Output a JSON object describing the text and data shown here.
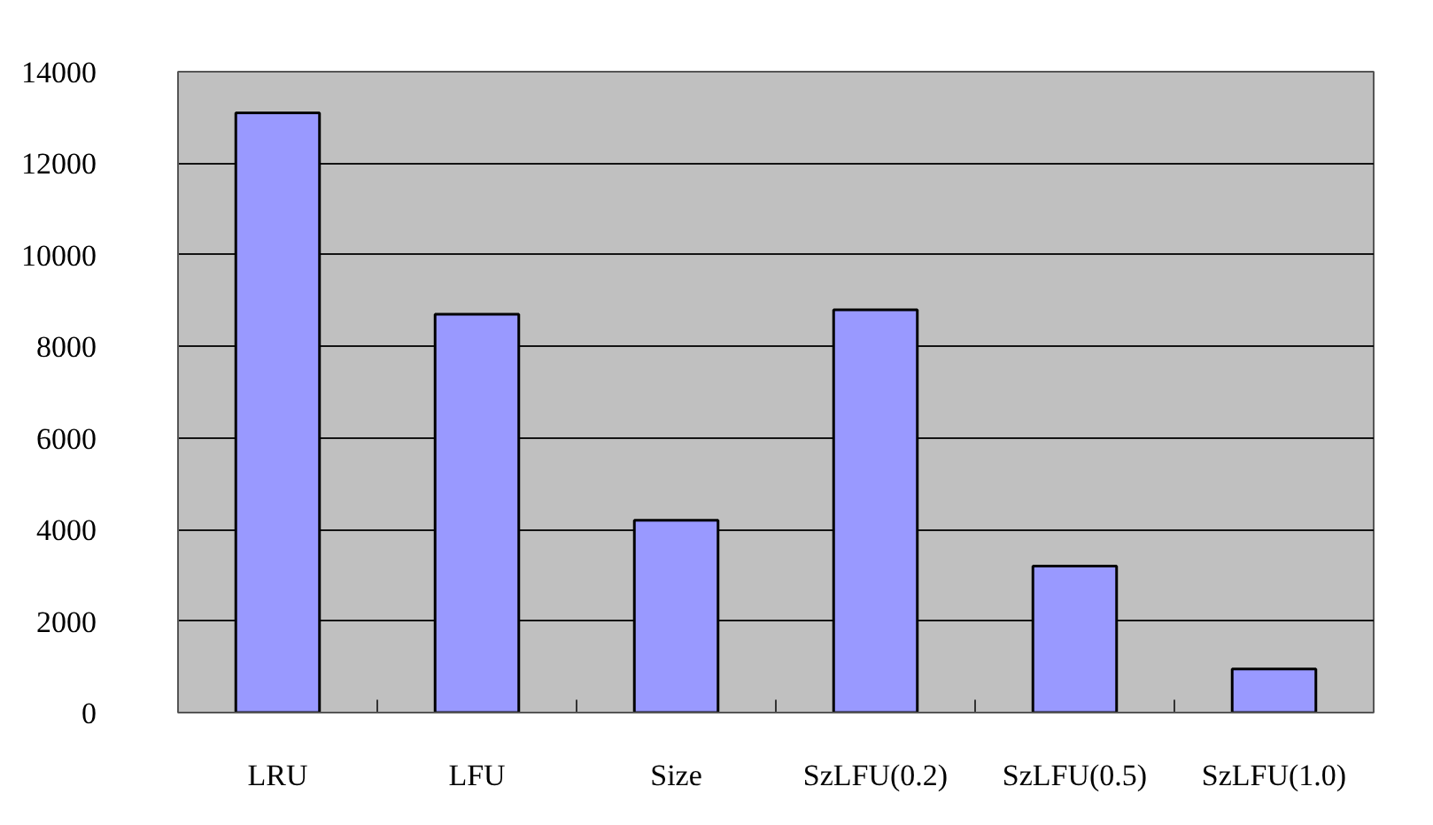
{
  "chart_data": {
    "type": "bar",
    "categories": [
      "LRU",
      "LFU",
      "Size",
      "SzLFU(0.2)",
      "SzLFU(0.5)",
      "SzLFU(1.0)"
    ],
    "values": [
      13100,
      8700,
      4200,
      8800,
      3200,
      950
    ],
    "color": "#9999ff",
    "ylim": [
      0,
      14000
    ],
    "yticks": [
      0,
      2000,
      4000,
      6000,
      8000,
      10000,
      12000,
      14000
    ],
    "grid": "y"
  }
}
